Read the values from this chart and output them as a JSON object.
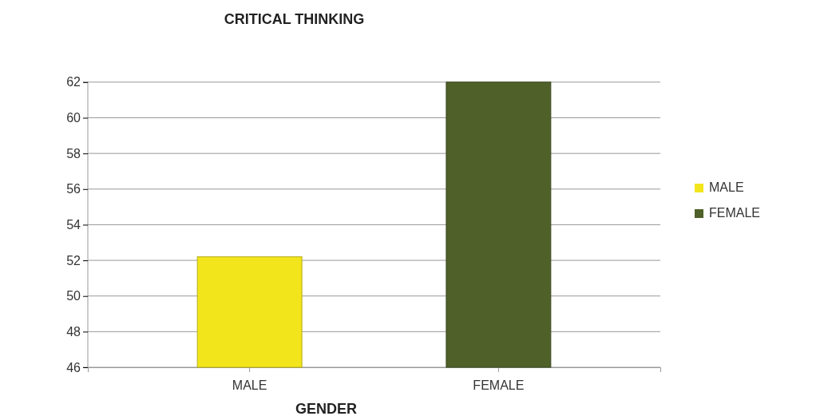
{
  "chart_data": {
    "type": "bar",
    "title": "CRITICAL THINKING",
    "xlabel": "GENDER",
    "categories": [
      "MALE",
      "FEMALE"
    ],
    "series": [
      {
        "name": "MALE",
        "color": "#f2e51c",
        "values": [
          52.2,
          null
        ]
      },
      {
        "name": "FEMALE",
        "color": "#4f6129",
        "values": [
          null,
          62
        ]
      }
    ],
    "ylim": [
      46,
      62
    ],
    "yticks": [
      46,
      48,
      50,
      52,
      54,
      56,
      58,
      60,
      62
    ],
    "grid": "y",
    "legend": "right"
  }
}
